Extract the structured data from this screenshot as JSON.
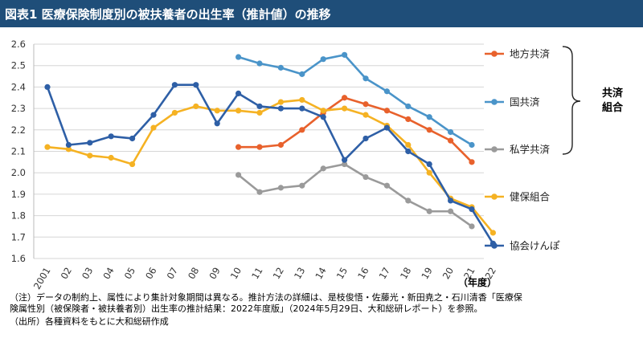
{
  "header": {
    "title": "図表1 医療保険制度別の被扶養者の出生率（推計値）の推移"
  },
  "chart_data": {
    "type": "line",
    "title": "図表1 医療保険制度別の被扶養者の出生率（推計値）の推移",
    "xlabel": "（年度）",
    "ylabel": "",
    "ylim": [
      1.6,
      2.6
    ],
    "yticks": [
      "1.6",
      "1.7",
      "1.8",
      "1.9",
      "2.0",
      "2.1",
      "2.2",
      "2.3",
      "2.4",
      "2.5",
      "2.6"
    ],
    "categories": [
      "2001",
      "02",
      "03",
      "04",
      "05",
      "06",
      "07",
      "08",
      "09",
      "10",
      "11",
      "12",
      "13",
      "14",
      "15",
      "16",
      "17",
      "18",
      "19",
      "20",
      "21",
      "22"
    ],
    "series": [
      {
        "name": "地方共済",
        "color": "#e8612c",
        "values": [
          null,
          null,
          null,
          null,
          null,
          null,
          null,
          null,
          null,
          2.12,
          2.12,
          2.13,
          2.2,
          2.28,
          2.35,
          2.32,
          2.29,
          2.25,
          2.2,
          2.15,
          2.05,
          null
        ]
      },
      {
        "name": "国共済",
        "color": "#4a94c9",
        "values": [
          null,
          null,
          null,
          null,
          null,
          null,
          null,
          null,
          null,
          2.54,
          2.51,
          2.49,
          2.46,
          2.53,
          2.55,
          2.44,
          2.38,
          2.31,
          2.26,
          2.19,
          2.13,
          null
        ]
      },
      {
        "name": "私学共済",
        "color": "#9a9a9a",
        "values": [
          null,
          null,
          null,
          null,
          null,
          null,
          null,
          null,
          null,
          1.99,
          1.91,
          1.93,
          1.94,
          2.02,
          2.04,
          1.98,
          1.94,
          1.87,
          1.82,
          1.82,
          1.75,
          null
        ]
      },
      {
        "name": "健保組合",
        "color": "#f5b223",
        "values": [
          2.12,
          2.11,
          2.08,
          2.07,
          2.04,
          2.21,
          2.28,
          2.31,
          2.29,
          2.29,
          2.28,
          2.33,
          2.34,
          2.29,
          2.3,
          2.27,
          2.22,
          2.13,
          2.0,
          1.88,
          1.84,
          1.72
        ]
      },
      {
        "name": "協会けんぽ",
        "color": "#2e5fa6",
        "values": [
          2.4,
          2.13,
          2.14,
          2.17,
          2.16,
          2.27,
          2.41,
          2.41,
          2.23,
          2.37,
          2.31,
          2.3,
          2.3,
          2.26,
          2.06,
          2.16,
          2.21,
          2.1,
          2.04,
          1.87,
          1.83,
          1.67
        ]
      }
    ],
    "group_label": [
      "共済",
      "組合"
    ]
  },
  "notes": [
    "（注）データの制約上、属性により集計対象期間は異なる。推計方法の詳細は、是枝俊悟・佐藤光・新田尭之・石川清香「医療保",
    "険属性別（被保険者・被扶養者別）出生率の推計結果：2022年度版」（2024年5月29日、大和総研レポート）を参照。",
    "（出所）各種資料をもとに大和総研作成"
  ]
}
